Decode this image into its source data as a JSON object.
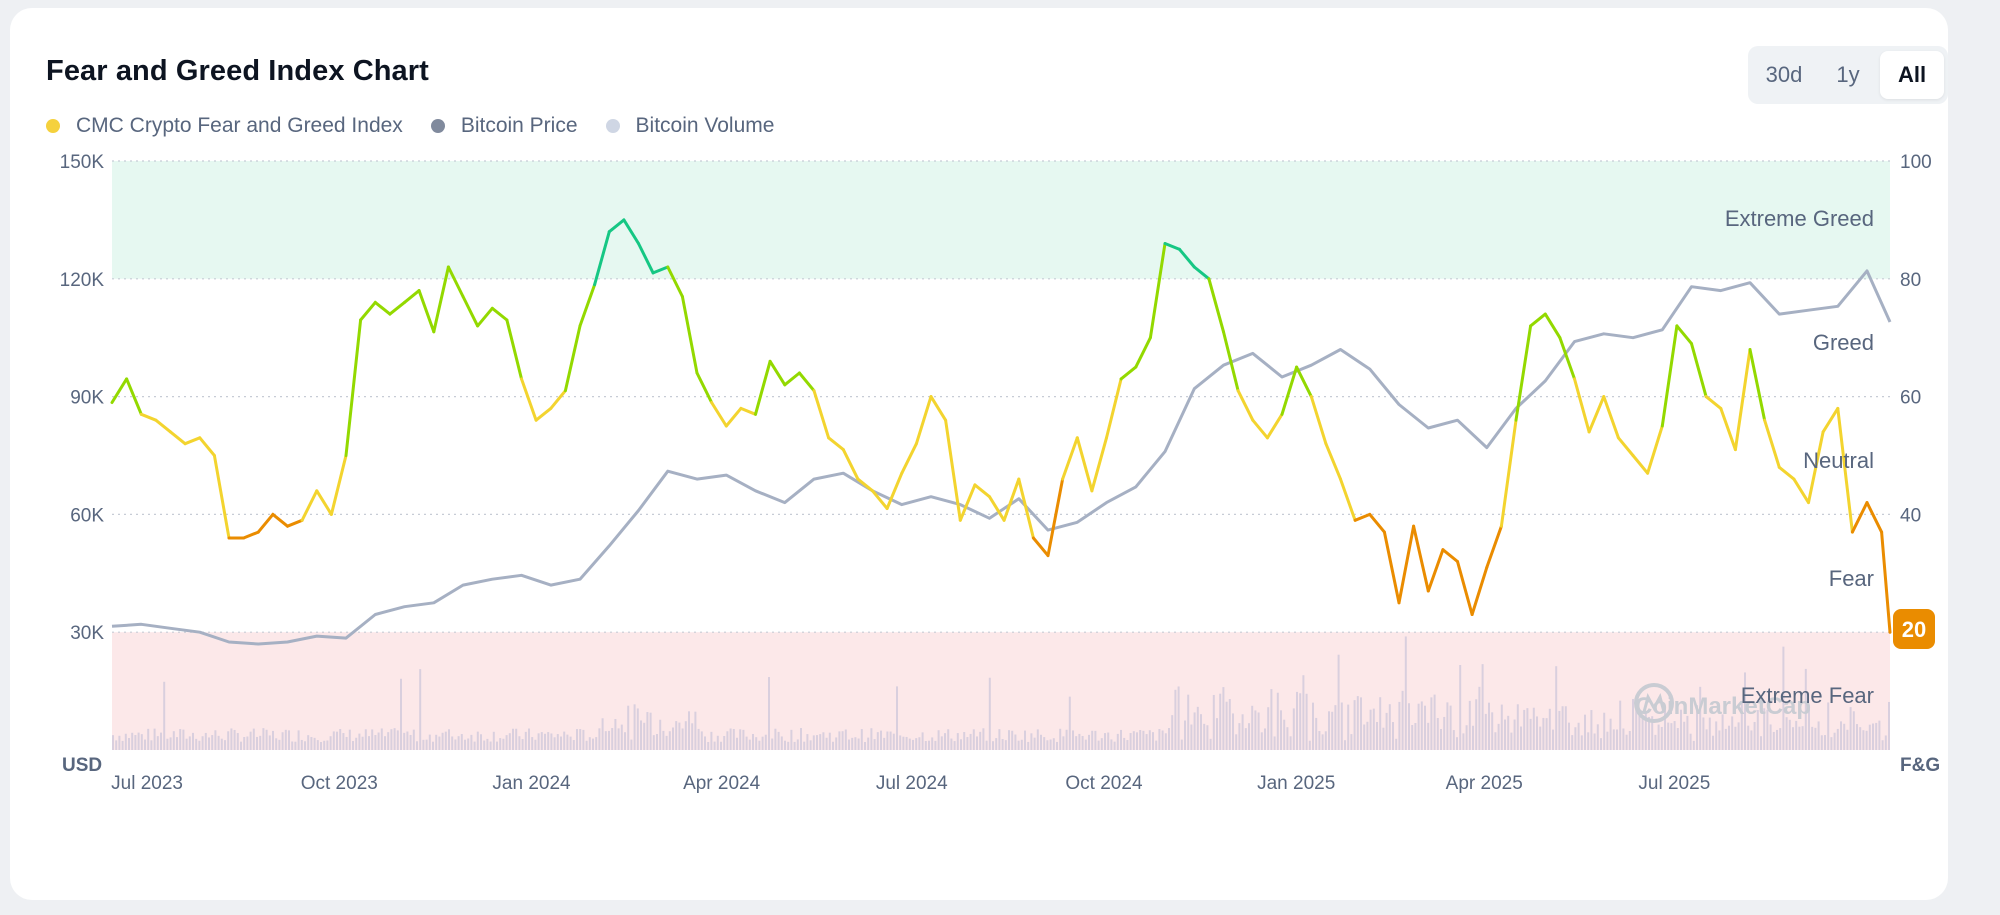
{
  "title": "Fear and Greed Index Chart",
  "range_options": [
    "30d",
    "1y",
    "All"
  ],
  "active_range": "All",
  "legend": [
    {
      "label": "CMC Crypto Fear and Greed Index",
      "color": "#f5d13d"
    },
    {
      "label": "Bitcoin Price",
      "color": "#808a9d"
    },
    {
      "label": "Bitcoin Volume",
      "color": "#cfd6e4"
    }
  ],
  "watermark": "CoinMarketCap",
  "colors": {
    "extreme_greed": "#16c784",
    "greed": "#93d900",
    "neutral": "#f3d42f",
    "fear": "#ea8c00",
    "extreme_fear": "#ea3943",
    "price": "#a6b0c3",
    "volume": "#d9cfde",
    "zone_greed": "#e6f8f1",
    "zone_fear": "#fce8e9"
  },
  "chart_data": {
    "type": "line",
    "left_axis": {
      "unit": "USD",
      "ticks": [
        "150K",
        "120K",
        "90K",
        "60K",
        "30K"
      ],
      "range": [
        0,
        150000
      ]
    },
    "right_axis": {
      "unit": "F&G",
      "ticks": [
        "100",
        "80",
        "60",
        "40",
        "20"
      ],
      "range": [
        0,
        100
      ]
    },
    "x_ticks": [
      "Jul 2023",
      "Oct 2023",
      "Jan 2024",
      "Apr 2024",
      "Jul 2024",
      "Oct 2024",
      "Jan 2025",
      "Apr 2025",
      "Jul 2025"
    ],
    "zones": [
      {
        "label": "Extreme Greed",
        "range": [
          80,
          100
        ]
      },
      {
        "label": "Greed",
        "value": 70
      },
      {
        "label": "Neutral",
        "value": 50
      },
      {
        "label": "Fear",
        "value": 30
      },
      {
        "label": "Extreme Fear",
        "range": [
          0,
          20
        ]
      }
    ],
    "current_value": "20",
    "x_range": [
      "2023-06-19",
      "2025-10-17"
    ],
    "series": [
      {
        "name": "CMC Crypto Fear and Greed Index",
        "axis": "right",
        "x": [
          "2023-06-19",
          "2023-06-26",
          "2023-07-03",
          "2023-07-10",
          "2023-07-17",
          "2023-07-24",
          "2023-07-31",
          "2023-08-07",
          "2023-08-14",
          "2023-08-21",
          "2023-08-28",
          "2023-09-04",
          "2023-09-11",
          "2023-09-18",
          "2023-09-25",
          "2023-10-02",
          "2023-10-09",
          "2023-10-16",
          "2023-10-23",
          "2023-10-30",
          "2023-11-06",
          "2023-11-13",
          "2023-11-20",
          "2023-11-27",
          "2023-12-04",
          "2023-12-11",
          "2023-12-18",
          "2023-12-25",
          "2024-01-01",
          "2024-01-08",
          "2024-01-15",
          "2024-01-22",
          "2024-01-29",
          "2024-02-05",
          "2024-02-12",
          "2024-02-19",
          "2024-02-26",
          "2024-03-04",
          "2024-03-11",
          "2024-03-18",
          "2024-03-25",
          "2024-04-01",
          "2024-04-08",
          "2024-04-15",
          "2024-04-22",
          "2024-04-29",
          "2024-05-06",
          "2024-05-13",
          "2024-05-20",
          "2024-05-27",
          "2024-06-03",
          "2024-06-10",
          "2024-06-17",
          "2024-06-24",
          "2024-07-01",
          "2024-07-08",
          "2024-07-15",
          "2024-07-22",
          "2024-07-29",
          "2024-08-05",
          "2024-08-12",
          "2024-08-19",
          "2024-08-26",
          "2024-09-02",
          "2024-09-09",
          "2024-09-16",
          "2024-09-23",
          "2024-09-30",
          "2024-10-07",
          "2024-10-14",
          "2024-10-21",
          "2024-10-28",
          "2024-11-04",
          "2024-11-11",
          "2024-11-18",
          "2024-11-25",
          "2024-12-02",
          "2024-12-09",
          "2024-12-16",
          "2024-12-23",
          "2024-12-30",
          "2025-01-06",
          "2025-01-13",
          "2025-01-20",
          "2025-01-27",
          "2025-02-03",
          "2025-02-10",
          "2025-02-17",
          "2025-02-24",
          "2025-03-03",
          "2025-03-10",
          "2025-03-17",
          "2025-03-24",
          "2025-03-31",
          "2025-04-07",
          "2025-04-14",
          "2025-04-21",
          "2025-04-28",
          "2025-05-05",
          "2025-05-12",
          "2025-05-19",
          "2025-05-26",
          "2025-06-02",
          "2025-06-09",
          "2025-06-16",
          "2025-06-23",
          "2025-06-30",
          "2025-07-07",
          "2025-07-14",
          "2025-07-21",
          "2025-07-28",
          "2025-08-04",
          "2025-08-11",
          "2025-08-18",
          "2025-08-25",
          "2025-09-01",
          "2025-09-08",
          "2025-09-15",
          "2025-09-22",
          "2025-09-29",
          "2025-10-06",
          "2025-10-13",
          "2025-10-17"
        ],
        "values": [
          59,
          63,
          57,
          56,
          54,
          52,
          53,
          50,
          36,
          36,
          37,
          40,
          38,
          39,
          44,
          40,
          50,
          73,
          76,
          74,
          76,
          78,
          71,
          82,
          77,
          72,
          75,
          73,
          63,
          56,
          58,
          61,
          72,
          79,
          88,
          90,
          86,
          81,
          82,
          77,
          64,
          59,
          55,
          58,
          57,
          66,
          62,
          64,
          61,
          53,
          51,
          46,
          44,
          41,
          47,
          52,
          60,
          56,
          39,
          45,
          43,
          39,
          46,
          36,
          33,
          46,
          53,
          44,
          53,
          63,
          65,
          70,
          86,
          85,
          82,
          80,
          71,
          61,
          56,
          53,
          57,
          65,
          60,
          52,
          46,
          39,
          40,
          37,
          25,
          38,
          27,
          34,
          32,
          23,
          31,
          38,
          56,
          72,
          74,
          70,
          63,
          54,
          60,
          53,
          50,
          47,
          55,
          72,
          69,
          60,
          58,
          51,
          68,
          56,
          48,
          46,
          42,
          54,
          58,
          37,
          42,
          37,
          20
        ]
      },
      {
        "name": "Bitcoin Price",
        "axis": "left",
        "x": [
          "2023-06-19",
          "2023-07-03",
          "2023-07-17",
          "2023-07-31",
          "2023-08-14",
          "2023-08-28",
          "2023-09-11",
          "2023-09-25",
          "2023-10-09",
          "2023-10-23",
          "2023-11-06",
          "2023-11-20",
          "2023-12-04",
          "2023-12-18",
          "2024-01-01",
          "2024-01-15",
          "2024-01-29",
          "2024-02-12",
          "2024-02-26",
          "2024-03-11",
          "2024-03-25",
          "2024-04-08",
          "2024-04-22",
          "2024-05-06",
          "2024-05-20",
          "2024-06-03",
          "2024-06-17",
          "2024-07-01",
          "2024-07-15",
          "2024-07-29",
          "2024-08-12",
          "2024-08-26",
          "2024-09-09",
          "2024-09-23",
          "2024-10-07",
          "2024-10-21",
          "2024-11-04",
          "2024-11-18",
          "2024-12-02",
          "2024-12-16",
          "2024-12-30",
          "2025-01-13",
          "2025-01-27",
          "2025-02-10",
          "2025-02-24",
          "2025-03-10",
          "2025-03-24",
          "2025-04-07",
          "2025-04-21",
          "2025-05-05",
          "2025-05-19",
          "2025-06-02",
          "2025-06-16",
          "2025-06-30",
          "2025-07-14",
          "2025-07-28",
          "2025-08-11",
          "2025-08-25",
          "2025-09-08",
          "2025-09-22",
          "2025-10-06",
          "2025-10-17"
        ],
        "values": [
          31500,
          32000,
          31000,
          30000,
          27500,
          27000,
          27500,
          29000,
          28500,
          34500,
          36500,
          37500,
          42000,
          43500,
          44500,
          42000,
          43500,
          52000,
          61000,
          71000,
          69000,
          70000,
          66000,
          63000,
          69000,
          70500,
          66000,
          62500,
          64500,
          62500,
          59000,
          64000,
          56000,
          58000,
          63000,
          67000,
          76000,
          92000,
          98000,
          101000,
          95000,
          98000,
          102000,
          97000,
          88000,
          82000,
          84000,
          77000,
          87000,
          94000,
          104000,
          106000,
          105000,
          107000,
          118000,
          117000,
          119000,
          111000,
          112000,
          113000,
          122000,
          109000
        ]
      }
    ],
    "volume": {
      "name": "Bitcoin Volume",
      "note": "relative volume bars along the bottom of the plot",
      "peak_period": [
        "2024-11-04",
        "2025-04-14"
      ]
    }
  }
}
